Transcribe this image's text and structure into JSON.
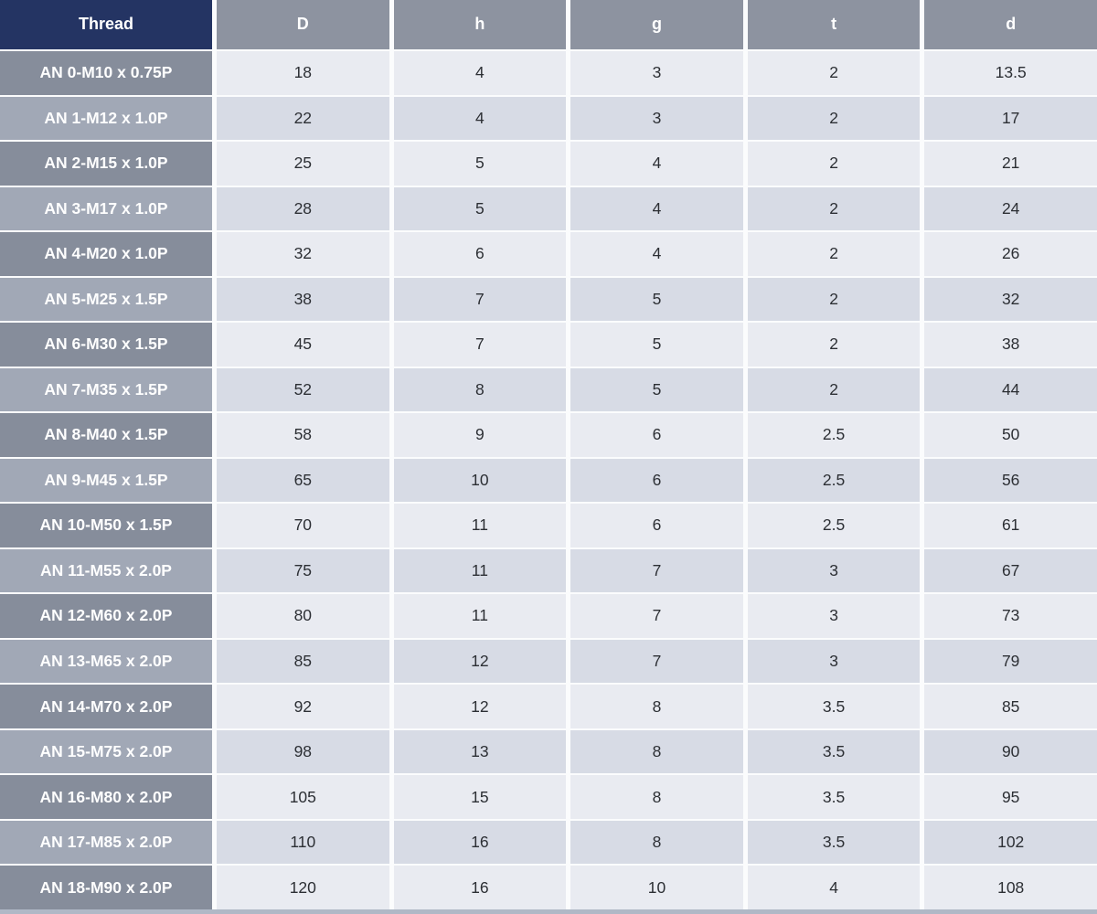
{
  "colors": {
    "header_thread_bg": "#243463",
    "header_bg": "#8d93a0",
    "header_text": "#ffffff",
    "row_label_dark_bg": "#868d9b",
    "row_label_light_bg": "#a1a8b6",
    "row_label_text": "#ffffff",
    "data_cell_light_bg": "#e9ebf1",
    "data_cell_dark_bg": "#d7dbe5",
    "data_text": "#2c2f34",
    "grid_gap": "#fbfcfd",
    "bottom_bar": "#b0b8c6"
  },
  "chart_data": {
    "type": "table",
    "columns": [
      "Thread",
      "D",
      "h",
      "g",
      "t",
      "d"
    ],
    "rows": [
      [
        "AN 0-M10 x 0.75P",
        "18",
        "4",
        "3",
        "2",
        "13.5"
      ],
      [
        "AN 1-M12 x 1.0P",
        "22",
        "4",
        "3",
        "2",
        "17"
      ],
      [
        "AN 2-M15 x 1.0P",
        "25",
        "5",
        "4",
        "2",
        "21"
      ],
      [
        "AN 3-M17 x 1.0P",
        "28",
        "5",
        "4",
        "2",
        "24"
      ],
      [
        "AN 4-M20 x 1.0P",
        "32",
        "6",
        "4",
        "2",
        "26"
      ],
      [
        "AN 5-M25 x 1.5P",
        "38",
        "7",
        "5",
        "2",
        "32"
      ],
      [
        "AN 6-M30 x 1.5P",
        "45",
        "7",
        "5",
        "2",
        "38"
      ],
      [
        "AN 7-M35 x 1.5P",
        "52",
        "8",
        "5",
        "2",
        "44"
      ],
      [
        "AN 8-M40 x 1.5P",
        "58",
        "9",
        "6",
        "2.5",
        "50"
      ],
      [
        "AN 9-M45 x 1.5P",
        "65",
        "10",
        "6",
        "2.5",
        "56"
      ],
      [
        "AN 10-M50 x 1.5P",
        "70",
        "11",
        "6",
        "2.5",
        "61"
      ],
      [
        "AN 11-M55 x 2.0P",
        "75",
        "11",
        "7",
        "3",
        "67"
      ],
      [
        "AN 12-M60 x 2.0P",
        "80",
        "11",
        "7",
        "3",
        "73"
      ],
      [
        "AN 13-M65 x 2.0P",
        "85",
        "12",
        "7",
        "3",
        "79"
      ],
      [
        "AN 14-M70 x 2.0P",
        "92",
        "12",
        "8",
        "3.5",
        "85"
      ],
      [
        "AN 15-M75 x 2.0P",
        "98",
        "13",
        "8",
        "3.5",
        "90"
      ],
      [
        "AN 16-M80 x 2.0P",
        "105",
        "15",
        "8",
        "3.5",
        "95"
      ],
      [
        "AN 17-M85 x 2.0P",
        "110",
        "16",
        "8",
        "3.5",
        "102"
      ],
      [
        "AN 18-M90 x 2.0P",
        "120",
        "16",
        "10",
        "4",
        "108"
      ]
    ]
  }
}
